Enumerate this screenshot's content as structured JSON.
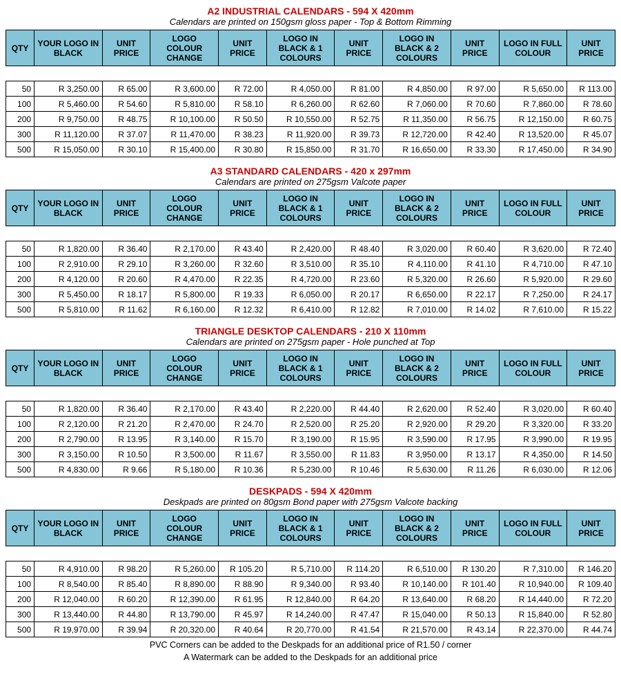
{
  "colors": {
    "title": "#cc0000",
    "header_bg": "#86c5d8",
    "border": "#000000",
    "text": "#000000"
  },
  "headers": [
    "QTY",
    "YOUR LOGO IN BLACK",
    "UNIT PRICE",
    "LOGO COLOUR CHANGE",
    "UNIT PRICE",
    "LOGO IN BLACK & 1 COLOURS",
    "UNIT PRICE",
    "LOGO IN BLACK & 2 COLOURS",
    "UNIT PRICE",
    "LOGO IN FULL COLOUR",
    "UNIT PRICE"
  ],
  "sections": [
    {
      "title": "A2 INDUSTRIAL CALENDARS - 594 X 420mm",
      "subtitle": "Calendars are printed on 150gsm gloss paper - Top & Bottom Rimming",
      "rows": [
        [
          "50",
          "R 3,250.00",
          "R 65.00",
          "R 3,600.00",
          "R 72.00",
          "R 4,050.00",
          "R 81.00",
          "R 4,850.00",
          "R 97.00",
          "R 5,650.00",
          "R 113.00"
        ],
        [
          "100",
          "R 5,460.00",
          "R 54.60",
          "R 5,810.00",
          "R 58.10",
          "R 6,260.00",
          "R 62.60",
          "R 7,060.00",
          "R 70.60",
          "R 7,860.00",
          "R 78.60"
        ],
        [
          "200",
          "R 9,750.00",
          "R 48.75",
          "R 10,100.00",
          "R 50.50",
          "R 10,550.00",
          "R 52.75",
          "R 11,350.00",
          "R 56.75",
          "R 12,150.00",
          "R 60.75"
        ],
        [
          "300",
          "R 11,120.00",
          "R 37.07",
          "R 11,470.00",
          "R 38.23",
          "R 11,920.00",
          "R 39.73",
          "R 12,720.00",
          "R 42.40",
          "R 13,520.00",
          "R 45.07"
        ],
        [
          "500",
          "R 15,050.00",
          "R 30.10",
          "R 15,400.00",
          "R 30.80",
          "R 15,850.00",
          "R 31.70",
          "R 16,650.00",
          "R 33.30",
          "R 17,450.00",
          "R 34.90"
        ]
      ]
    },
    {
      "title": "A3 STANDARD CALENDARS - 420 x 297mm",
      "subtitle": "Calendars are printed on 275gsm Valcote paper",
      "rows": [
        [
          "50",
          "R 1,820.00",
          "R 36.40",
          "R 2,170.00",
          "R 43.40",
          "R 2,420.00",
          "R 48.40",
          "R 3,020.00",
          "R 60.40",
          "R 3,620.00",
          "R 72.40"
        ],
        [
          "100",
          "R 2,910.00",
          "R 29.10",
          "R 3,260.00",
          "R 32.60",
          "R 3,510.00",
          "R 35.10",
          "R 4,110.00",
          "R 41.10",
          "R 4,710.00",
          "R 47.10"
        ],
        [
          "200",
          "R 4,120.00",
          "R 20.60",
          "R 4,470.00",
          "R 22.35",
          "R 4,720.00",
          "R 23.60",
          "R 5,320.00",
          "R 26.60",
          "R 5,920.00",
          "R 29.60"
        ],
        [
          "300",
          "R 5,450.00",
          "R 18.17",
          "R 5,800.00",
          "R 19.33",
          "R 6,050.00",
          "R 20.17",
          "R 6,650.00",
          "R 22.17",
          "R 7,250.00",
          "R 24.17"
        ],
        [
          "500",
          "R 5,810.00",
          "R 11.62",
          "R 6,160.00",
          "R 12.32",
          "R 6,410.00",
          "R 12.82",
          "R 7,010.00",
          "R 14.02",
          "R 7,610.00",
          "R 15.22"
        ]
      ]
    },
    {
      "title": "TRIANGLE DESKTOP CALENDARS - 210 X 110mm",
      "subtitle": "Calendars are printed on 275gsm paper - Hole punched at Top",
      "rows": [
        [
          "50",
          "R 1,820.00",
          "R 36.40",
          "R 2,170.00",
          "R 43.40",
          "R 2,220.00",
          "R 44.40",
          "R 2,620.00",
          "R 52.40",
          "R 3,020.00",
          "R 60.40"
        ],
        [
          "100",
          "R 2,120.00",
          "R 21.20",
          "R 2,470.00",
          "R 24.70",
          "R 2,520.00",
          "R 25.20",
          "R 2,920.00",
          "R 29.20",
          "R 3,320.00",
          "R 33.20"
        ],
        [
          "200",
          "R 2,790.00",
          "R 13.95",
          "R 3,140.00",
          "R 15.70",
          "R 3,190.00",
          "R 15.95",
          "R 3,590.00",
          "R 17.95",
          "R 3,990.00",
          "R 19.95"
        ],
        [
          "300",
          "R 3,150.00",
          "R 10.50",
          "R 3,500.00",
          "R 11.67",
          "R 3,550.00",
          "R 11.83",
          "R 3,950.00",
          "R 13.17",
          "R 4,350.00",
          "R 14.50"
        ],
        [
          "500",
          "R 4,830.00",
          "R 9.66",
          "R 5,180.00",
          "R 10.36",
          "R 5,230.00",
          "R 10.46",
          "R 5,630.00",
          "R 11.26",
          "R 6,030.00",
          "R 12.06"
        ]
      ]
    },
    {
      "title": "DESKPADS - 594 X 420mm",
      "subtitle": "Deskpads are printed on 80gsm Bond paper with 275gsm Valcote backing",
      "rows": [
        [
          "50",
          "R 4,910.00",
          "R 98.20",
          "R 5,260.00",
          "R 105.20",
          "R 5,710.00",
          "R 114.20",
          "R 6,510.00",
          "R 130.20",
          "R 7,310.00",
          "R 146.20"
        ],
        [
          "100",
          "R 8,540.00",
          "R 85.40",
          "R 8,890.00",
          "R 88.90",
          "R 9,340.00",
          "R 93.40",
          "R 10,140.00",
          "R 101.40",
          "R 10,940.00",
          "R 109.40"
        ],
        [
          "200",
          "R 12,040.00",
          "R 60.20",
          "R 12,390.00",
          "R 61.95",
          "R 12,840.00",
          "R 64.20",
          "R 13,640.00",
          "R 68.20",
          "R 14,440.00",
          "R 72.20"
        ],
        [
          "300",
          "R 13,440.00",
          "R 44.80",
          "R 13,790.00",
          "R 45.97",
          "R 14,240.00",
          "R 47.47",
          "R 15,040.00",
          "R 50.13",
          "R 15,840.00",
          "R 52.80"
        ],
        [
          "500",
          "R 19,970.00",
          "R 39.94",
          "R 20,320.00",
          "R 40.64",
          "R 20,770.00",
          "R 41.54",
          "R 21,570.00",
          "R 43.14",
          "R 22,370.00",
          "R 44.74"
        ]
      ],
      "footnotes": [
        "PVC Corners can be added to the Deskpads for an additional price of R1.50 / corner",
        "A Watermark can be added to the Deskpads for an additional price"
      ]
    }
  ]
}
